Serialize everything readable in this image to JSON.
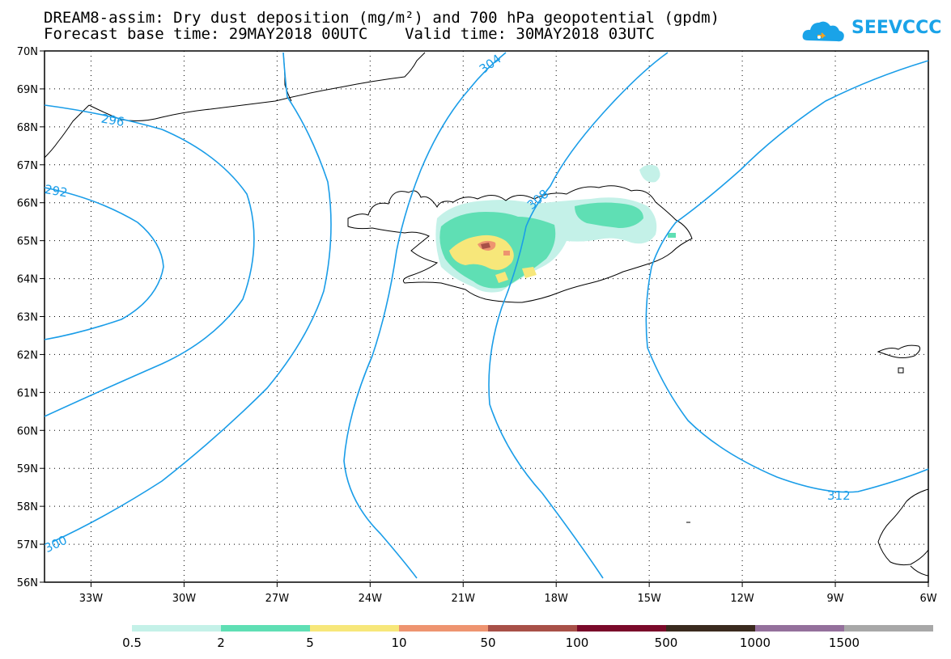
{
  "title": {
    "line1": "DREAM8-assim: Dry dust deposition (mg/m²) and 700 hPa geopotential (gpdm)",
    "line2": "Forecast base time: 29MAY2018 00UTC    Valid time: 30MAY2018 03UTC"
  },
  "logo": {
    "text": "SEEVCCC",
    "icon": "cloud-icon",
    "color": "#1aa3e8"
  },
  "axes": {
    "lat_labels": [
      "70N",
      "69N",
      "68N",
      "67N",
      "66N",
      "65N",
      "64N",
      "63N",
      "62N",
      "61N",
      "60N",
      "59N",
      "58N",
      "57N",
      "56N"
    ],
    "lon_labels": [
      "33W",
      "30W",
      "27W",
      "24W",
      "21W",
      "18W",
      "15W",
      "12W",
      "9W",
      "6W"
    ],
    "lat_range": [
      56,
      70
    ],
    "lon_range": [
      -34.5,
      -6
    ],
    "grid": "dotted"
  },
  "contours": {
    "color": "#1a9de8",
    "labels": [
      "304",
      "308",
      "312",
      "296",
      "292",
      "300"
    ]
  },
  "legend": {
    "labels": [
      "0.5",
      "2",
      "5",
      "10",
      "50",
      "100",
      "500",
      "1000",
      "1500"
    ],
    "colors": [
      "#c4f1e8",
      "#5fdfb4",
      "#f7e77a",
      "#ee9470",
      "#a85048",
      "#7a0a2a",
      "#3a2a1e",
      "#94709c",
      "#a8a8a8"
    ]
  }
}
